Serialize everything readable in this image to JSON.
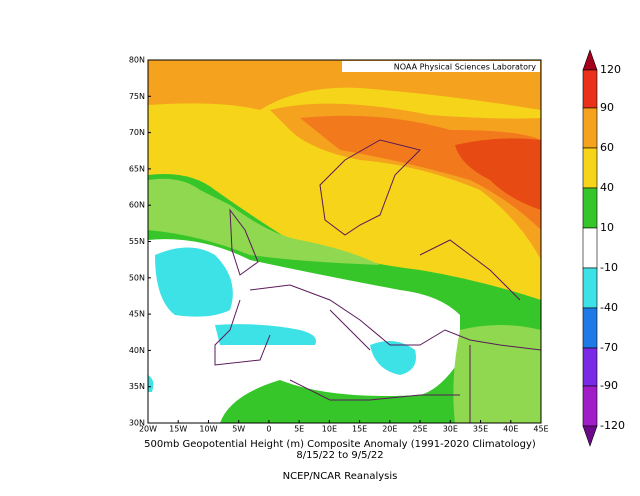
{
  "header": {
    "credit": "NOAA Physical Sciences Laboratory"
  },
  "map": {
    "lat_labels": [
      "80N",
      "75N",
      "70N",
      "65N",
      "60N",
      "55N",
      "50N",
      "45N",
      "40N",
      "35N",
      "30N"
    ],
    "lon_labels": [
      "20W",
      "15W",
      "10W",
      "5W",
      "0",
      "5E",
      "10E",
      "15E",
      "20E",
      "25E",
      "30E",
      "35E",
      "40E",
      "45E"
    ]
  },
  "colorbar": {
    "labels": [
      "120",
      "90",
      "60",
      "40",
      "10",
      "-10",
      "-40",
      "-70",
      "-90",
      "-120"
    ]
  },
  "caption": {
    "title": "500mb Geopotential Height (m) Composite Anomaly (1991-2020 Climatology)",
    "dates": "8/15/22 to 9/5/22",
    "source": "NCEP/NCAR Reanalysis"
  }
}
